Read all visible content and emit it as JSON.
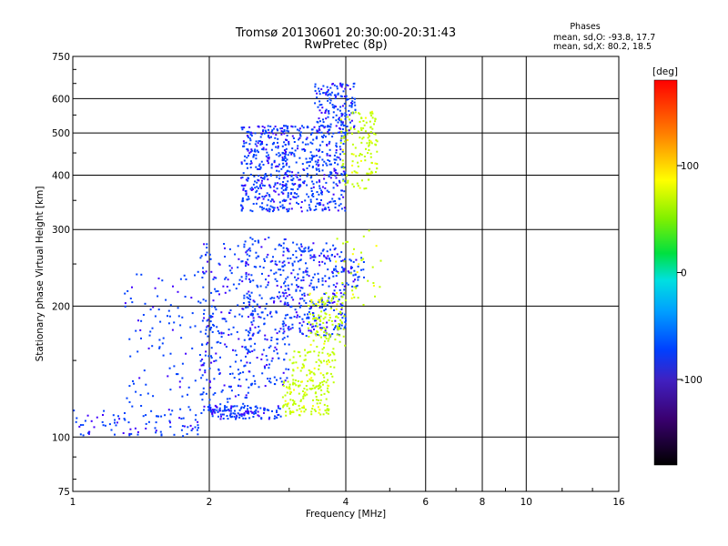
{
  "chart_data": {
    "type": "scatter",
    "title": "Tromsø 20130601 20:30:00-20:31:43",
    "subtitle": "RwPretec (8p)",
    "xlabel": "Frequency [MHz]",
    "ylabel": "Stationary phase Virtual Height [km]",
    "xscale": "log",
    "yscale": "log",
    "xlim": [
      1,
      16
    ],
    "ylim": [
      75,
      750
    ],
    "xticks": [
      1,
      2,
      4,
      6,
      8,
      10,
      16
    ],
    "xtick_labels": [
      "1",
      "2",
      "4",
      "6",
      "8",
      "10",
      "16"
    ],
    "yticks": [
      75,
      100,
      200,
      300,
      400,
      500,
      600,
      750
    ],
    "ytick_labels": [
      "75",
      "100",
      "200",
      "300",
      "400",
      "500",
      "600",
      "750"
    ],
    "grid": true,
    "phases_box": {
      "title": "Phases",
      "line1": "mean, sd,O: -93.8, 17.7",
      "line2": "mean, sd,X:  80.2, 18.5"
    },
    "colorbar": {
      "label": "[deg]",
      "range": [
        -180,
        180
      ],
      "ticks": [
        100,
        0,
        -100
      ],
      "tick_labels": [
        "100",
        "0",
        "-100"
      ]
    },
    "series": [
      {
        "name": "O",
        "phase_mean": -93.8,
        "phase_sd": 17.7,
        "clusters": [
          {
            "x": [
              1.0,
              1.9
            ],
            "y": [
              100,
              116
            ],
            "count": 90
          },
          {
            "x": [
              1.3,
              2.0
            ],
            "y": [
              115,
              240
            ],
            "count": 110
          },
          {
            "x": [
              1.9,
              2.5
            ],
            "y": [
              112,
              280
            ],
            "count": 260
          },
          {
            "x": [
              2.35,
              3.0
            ],
            "y": [
              330,
              520
            ],
            "count": 320
          },
          {
            "x": [
              2.4,
              3.0
            ],
            "y": [
              130,
              290
            ],
            "count": 220
          },
          {
            "x": [
              2.0,
              2.9
            ],
            "y": [
              110,
              118
            ],
            "count": 120
          },
          {
            "x": [
              2.9,
              4.0
            ],
            "y": [
              330,
              520
            ],
            "count": 360
          },
          {
            "x": [
              2.9,
              4.0
            ],
            "y": [
              170,
              280
            ],
            "count": 320
          },
          {
            "x": [
              3.4,
              4.2
            ],
            "y": [
              500,
              650
            ],
            "count": 160
          },
          {
            "x": [
              4.0,
              4.4
            ],
            "y": [
              220,
              260
            ],
            "count": 30
          }
        ]
      },
      {
        "name": "X",
        "phase_mean": 80.2,
        "phase_sd": 18.5,
        "clusters": [
          {
            "x": [
              2.9,
              3.7
            ],
            "y": [
              112,
              135
            ],
            "count": 120
          },
          {
            "x": [
              3.0,
              3.8
            ],
            "y": [
              130,
              160
            ],
            "count": 90
          },
          {
            "x": [
              3.3,
              4.0
            ],
            "y": [
              160,
              215
            ],
            "count": 110
          },
          {
            "x": [
              3.9,
              4.7
            ],
            "y": [
              370,
              560
            ],
            "count": 130
          },
          {
            "x": [
              3.8,
              4.8
            ],
            "y": [
              200,
              300
            ],
            "count": 40
          }
        ]
      }
    ]
  }
}
